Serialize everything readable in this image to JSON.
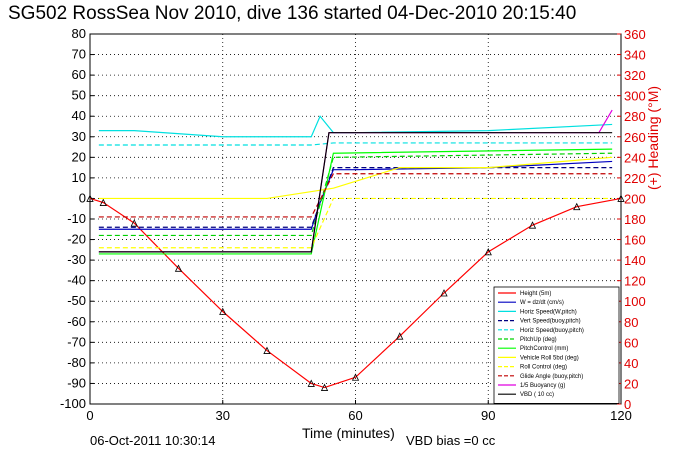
{
  "title": "SG502 RossSea Nov 2010, dive 136 started 04-Dec-2010 20:15:40",
  "footer": {
    "date": "06-Oct-2011 10:30:14",
    "vbd_bias": "VBD bias =0 cc"
  },
  "chart_data": {
    "type": "line",
    "title": "SG502 RossSea Nov 2010, dive 136 started 04-Dec-2010 20:15:40",
    "xlabel": "Time (minutes)",
    "ylabel": "",
    "ylabel_right": "(+) Heading (°M)",
    "xlim": [
      0,
      120
    ],
    "ylim": [
      -100,
      80
    ],
    "ylim_right": [
      0,
      360
    ],
    "xticks": [
      0,
      30,
      60,
      90,
      120
    ],
    "yticks": [
      -100,
      -90,
      -80,
      -70,
      -60,
      -50,
      -40,
      -30,
      -20,
      -10,
      0,
      10,
      20,
      30,
      40,
      50,
      60,
      70,
      80
    ],
    "yticks_right": [
      0,
      20,
      40,
      60,
      80,
      100,
      120,
      140,
      160,
      180,
      200,
      220,
      240,
      260,
      280,
      300,
      320,
      340,
      360
    ],
    "grid": true,
    "legend_position": "lower-right",
    "colors": {
      "height": "#ff0000",
      "w": "#0000c0",
      "horiz_speed": "#00e0e0",
      "vert_speed_buoy": "#000080",
      "horiz_speed_buoy": "#00e0e0",
      "pitch_up": "#00d000",
      "pitch_control": "#00ff00",
      "vehicle_roll": "#ffff00",
      "roll_control": "#ffff00",
      "glide_angle": "#c00000",
      "buoyancy": "#e000e0",
      "vbd": "#000000",
      "heading": "#ff0000"
    },
    "legend": [
      "Height (5m)",
      "W = dz/dt (cm/s)",
      "Horiz Speed(W,pitch)",
      "Vert Speed(buoy,pitch)",
      "Horiz Speed(buoy,pitch)",
      "PitchUp (deg)",
      "PitchControl (mm)",
      "Vehicle Roll 5bd (deg)",
      "Roll Control (deg)",
      "Glide Angle (buoy,pitch)",
      "1/5 Buoyancy (g)",
      "VBD ( 10 cc)"
    ],
    "series": [
      {
        "name": "Height (5m)",
        "x": [
          0,
          3,
          10,
          20,
          30,
          40,
          50,
          53,
          60,
          70,
          80,
          90,
          100,
          110,
          120
        ],
        "y": [
          0,
          -2,
          -12,
          -34,
          -55,
          -74,
          -90,
          -92,
          -87,
          -67,
          -46,
          -26,
          -13,
          -4,
          0
        ]
      },
      {
        "name": "W = dz/dt (cm/s)",
        "x": [
          2,
          10,
          30,
          50,
          52,
          55,
          60,
          90,
          118
        ],
        "y": [
          -15,
          -15,
          -15,
          -15,
          -2,
          14,
          14,
          15,
          18
        ]
      },
      {
        "name": "Horiz Speed(W,pitch)",
        "x": [
          2,
          10,
          30,
          50,
          52,
          55,
          60,
          90,
          118
        ],
        "y": [
          33,
          33,
          30,
          30,
          40,
          32,
          32,
          33,
          36
        ]
      },
      {
        "name": "Vert Speed(buoy,pitch)",
        "x": [
          2,
          50,
          55,
          118
        ],
        "y": [
          -14,
          -14,
          15,
          15
        ]
      },
      {
        "name": "Horiz Speed(buoy,pitch)",
        "x": [
          2,
          50,
          55,
          118
        ],
        "y": [
          26,
          26,
          27,
          27
        ]
      },
      {
        "name": "PitchUp (deg)",
        "x": [
          2,
          50,
          55,
          118
        ],
        "y": [
          -18,
          -18,
          20,
          22
        ]
      },
      {
        "name": "PitchControl (mm)",
        "x": [
          2,
          50,
          55,
          118
        ],
        "y": [
          -27,
          -27,
          22,
          24
        ]
      },
      {
        "name": "Vehicle Roll 5bd (deg)",
        "x": [
          2,
          20,
          40,
          55,
          70,
          90,
          118
        ],
        "y": [
          0,
          0,
          0,
          5,
          15,
          15,
          20
        ]
      },
      {
        "name": "Roll Control (deg)",
        "x": [
          2,
          50,
          55,
          118
        ],
        "y": [
          -24,
          -24,
          0,
          0
        ]
      },
      {
        "name": "Glide Angle (buoy,pitch)",
        "x": [
          2,
          50,
          55,
          118
        ],
        "y": [
          -9,
          -9,
          12,
          12
        ]
      },
      {
        "name": "1/5 Buoyancy (g)",
        "x": [
          2,
          50,
          54,
          115,
          118
        ],
        "y": [
          -26,
          -26,
          32,
          32,
          43
        ]
      },
      {
        "name": "VBD ( 10 cc)",
        "x": [
          2,
          50,
          54,
          118
        ],
        "y": [
          -26,
          -26,
          32,
          32
        ]
      }
    ]
  }
}
